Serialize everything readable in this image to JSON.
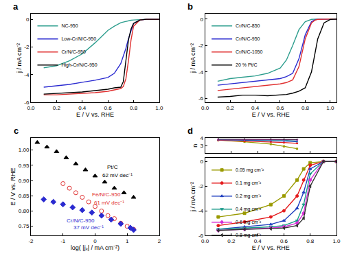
{
  "chart_data": [
    {
      "type": "line",
      "title": "a",
      "xlabel": "E / V vs. RHE",
      "ylabel": "j / mA cm⁻²",
      "x": [
        0.1,
        0.2,
        0.3,
        0.4,
        0.5,
        0.6,
        0.65,
        0.7,
        0.72,
        0.74,
        0.76,
        0.78,
        0.8,
        0.85,
        0.9,
        1.0
      ],
      "series": [
        {
          "name": "NC-950",
          "color": "#2e9e8e",
          "values": [
            -3.5,
            -3.35,
            -3.0,
            -2.5,
            -1.7,
            -0.8,
            -0.5,
            -0.25,
            -0.2,
            -0.15,
            -0.1,
            -0.07,
            -0.05,
            -0.02,
            0,
            0
          ]
        },
        {
          "name": "Low-Cr/N/C-950",
          "color": "#2a2ad0",
          "values": [
            -4.9,
            -4.8,
            -4.7,
            -4.55,
            -4.4,
            -4.2,
            -3.9,
            -3.2,
            -2.7,
            -2.1,
            -1.4,
            -0.8,
            -0.3,
            -0.05,
            0,
            0
          ]
        },
        {
          "name": "Cr/N/C-950",
          "color": "#e03030",
          "values": [
            -5.45,
            -5.45,
            -5.4,
            -5.35,
            -5.3,
            -5.2,
            -5.1,
            -5.0,
            -4.85,
            -4.3,
            -3.0,
            -1.5,
            -0.5,
            -0.05,
            0,
            0
          ]
        },
        {
          "name": "High-Cr/N/C-950",
          "color": "#000000",
          "values": [
            -5.4,
            -5.35,
            -5.3,
            -5.25,
            -5.15,
            -5.05,
            -4.95,
            -4.9,
            -4.5,
            -3.0,
            -1.5,
            -0.7,
            -0.3,
            -0.05,
            0,
            0
          ]
        }
      ],
      "xlim": [
        0,
        1
      ],
      "xticks": [
        {
          "value": 0,
          "label": "0.0"
        },
        0.2,
        0.4,
        0.6,
        0.8,
        {
          "value": 1,
          "label": "1.0"
        }
      ],
      "ylim": [
        -6,
        0.4
      ],
      "yticks": [
        -6,
        -4,
        -2,
        0
      ],
      "grid": false,
      "legend": "upper left"
    },
    {
      "type": "line",
      "title": "b",
      "xlabel": "E / V vs. RHE",
      "ylabel": "j / mA cm⁻²",
      "x": [
        0.1,
        0.2,
        0.3,
        0.4,
        0.5,
        0.6,
        0.65,
        0.7,
        0.75,
        0.8,
        0.85,
        0.88,
        0.9,
        0.95,
        1.0,
        1.05
      ],
      "series": [
        {
          "name": "Cr/N/C-850",
          "color": "#2e9e8e",
          "values": [
            -4.7,
            -4.5,
            -4.4,
            -4.3,
            -4.1,
            -3.7,
            -3.1,
            -2.0,
            -0.8,
            -0.2,
            -0.03,
            0,
            0,
            0,
            0,
            0
          ]
        },
        {
          "name": "Cr/N/C-950",
          "color": "#2a2ad0",
          "values": [
            -5.0,
            -4.9,
            -4.8,
            -4.7,
            -4.6,
            -4.5,
            -4.35,
            -4.1,
            -3.0,
            -1.2,
            -0.2,
            -0.05,
            -0.02,
            0,
            0,
            0
          ]
        },
        {
          "name": "Cr/N/C-1050",
          "color": "#e03030",
          "values": [
            -5.4,
            -5.3,
            -5.2,
            -5.1,
            -5.0,
            -4.9,
            -4.8,
            -4.6,
            -3.6,
            -1.5,
            -0.3,
            -0.08,
            -0.03,
            0,
            0,
            0
          ]
        },
        {
          "name": "20 % Pt/C",
          "color": "#000000",
          "values": [
            -5.9,
            -5.85,
            -5.75,
            -5.75,
            -5.8,
            -5.75,
            -5.7,
            -5.6,
            -5.45,
            -5.2,
            -4.0,
            -2.5,
            -1.5,
            -0.3,
            -0.03,
            0
          ]
        }
      ],
      "xlim": [
        0,
        1.05
      ],
      "xticks": [
        {
          "value": 0,
          "label": "0.0"
        },
        0.2,
        0.4,
        0.6,
        0.8,
        {
          "value": 1,
          "label": "1.0"
        }
      ],
      "ylim": [
        -6.3,
        0.4
      ],
      "yticks": [
        -6,
        -4,
        -2,
        0
      ],
      "grid": false,
      "legend": "upper left"
    },
    {
      "type": "scatter",
      "title": "c",
      "xlabel": "log( |jₖ| / mA cm⁻²)",
      "ylabel": "E / V vs. RHE",
      "series": [
        {
          "color": "#000000",
          "marker": "triangle-up",
          "x": [
            -1.8,
            -1.5,
            -1.2,
            -0.9,
            -0.6,
            -0.3,
            0,
            0.3,
            0.6,
            0.9,
            1.2
          ],
          "values": [
            1.025,
            1.01,
            0.995,
            0.975,
            0.955,
            0.935,
            0.915,
            0.895,
            0.875,
            0.86,
            0.845
          ]
        },
        {
          "color": "#e03030",
          "marker": "circle-open",
          "x": [
            -1.0,
            -0.8,
            -0.6,
            -0.4,
            -0.2,
            0,
            0.2,
            0.4,
            0.6,
            0.8,
            1.0,
            1.2
          ],
          "values": [
            0.89,
            0.875,
            0.86,
            0.845,
            0.83,
            0.815,
            0.8,
            0.785,
            0.775,
            0.76,
            0.75,
            0.74
          ]
        },
        {
          "color": "#2a2ad0",
          "marker": "diamond",
          "x": [
            -1.6,
            -1.3,
            -1.0,
            -0.7,
            -0.4,
            -0.1,
            0.2,
            0.5,
            0.8,
            1.1,
            1.2
          ],
          "values": [
            0.838,
            0.83,
            0.822,
            0.812,
            0.803,
            0.795,
            0.785,
            0.772,
            0.758,
            0.745,
            0.738
          ]
        }
      ],
      "annotations": [
        {
          "text": "Pt/C",
          "x": 0.55,
          "y": 0.945,
          "color": "#000000"
        },
        {
          "text": "62 mV dec⁻¹",
          "x": 0.7,
          "y": 0.918,
          "color": "#000000"
        },
        {
          "text": "Fe/N/C-950",
          "x": 0.35,
          "y": 0.855,
          "color": "#e03030"
        },
        {
          "text": "61 mV dec⁻¹",
          "x": 0.45,
          "y": 0.828,
          "color": "#e03030"
        },
        {
          "text": "Cr/N/C-950",
          "x": -0.45,
          "y": 0.768,
          "color": "#2a2ad0"
        },
        {
          "text": "37 mV dec⁻¹",
          "x": -0.2,
          "y": 0.745,
          "color": "#2a2ad0"
        }
      ],
      "xlim": [
        -2,
        2
      ],
      "xticks": [
        -2,
        -1,
        0,
        1,
        2
      ],
      "ylim": [
        0.72,
        1.04
      ],
      "yticks": [
        0.75,
        {
          "value": 0.8,
          "label": "0.80"
        },
        0.85,
        {
          "value": 0.9,
          "label": "0.90"
        },
        0.95,
        {
          "value": 1,
          "label": "1.00"
        }
      ],
      "grid": false
    },
    {
      "type": "line",
      "title": "d",
      "xlabel": "E / V vs. RHE",
      "ylabel": "j / mA cm⁻²",
      "y2label": "n",
      "x": [
        0.1,
        0.3,
        0.5,
        0.6,
        0.7,
        0.75,
        0.8,
        0.9,
        1.0
      ],
      "n_x": [
        0.1,
        0.3,
        0.5,
        0.6,
        0.7
      ],
      "series": [
        {
          "name": "0.05 mg cm⁻²",
          "color": "#9a9a00",
          "marker": "square",
          "values": [
            -4.5,
            -4.2,
            -3.5,
            -2.8,
            -1.5,
            -0.6,
            -0.1,
            0,
            0
          ],
          "n_values": [
            3.7,
            3.5,
            3.2,
            2.9,
            2.6
          ]
        },
        {
          "name": "0.1 mg cm⁻²",
          "color": "#e41a1c",
          "marker": "circle",
          "values": [
            -5.2,
            -4.9,
            -4.5,
            -4.0,
            -2.8,
            -1.5,
            -0.3,
            0,
            0
          ],
          "n_values": [
            3.7,
            3.6,
            3.5,
            3.4,
            3.3
          ]
        },
        {
          "name": "0.2 mg cm⁻²",
          "color": "#1f3fbf",
          "marker": "triangle-up",
          "values": [
            -5.5,
            -5.3,
            -5.1,
            -4.8,
            -3.8,
            -2.5,
            -0.6,
            0,
            0
          ],
          "n_values": [
            3.75,
            3.7,
            3.65,
            3.6,
            3.5
          ]
        },
        {
          "name": "0.4 mg cm⁻²",
          "color": "#1a9a8a",
          "marker": "triangle-down",
          "values": [
            -5.5,
            -5.4,
            -5.3,
            -5.2,
            -4.8,
            -3.5,
            -1.0,
            0,
            0
          ],
          "n_values": [
            3.8,
            3.78,
            3.75,
            3.7,
            3.6
          ]
        },
        {
          "name": "0.6 mg cm⁻²",
          "color": "#d62fd6",
          "marker": "diamond",
          "values": [
            -5.6,
            -5.5,
            -5.4,
            -5.3,
            -5.0,
            -4.2,
            -1.5,
            0,
            0
          ],
          "n_values": [
            3.82,
            3.8,
            3.8,
            3.78,
            3.75
          ]
        },
        {
          "name": "0.8 mg cm⁻²",
          "color": "#333333",
          "marker": "triangle-left",
          "values": [
            -5.6,
            -5.5,
            -5.45,
            -5.4,
            -5.2,
            -4.6,
            -2.0,
            0,
            0
          ],
          "n_values": [
            3.85,
            3.85,
            3.85,
            3.83,
            3.8
          ]
        }
      ],
      "xlim": [
        0,
        1
      ],
      "xticks": [
        {
          "value": 0,
          "label": "0.0"
        },
        0.2,
        0.4,
        0.6,
        0.8,
        {
          "value": 1,
          "label": "1.0"
        }
      ],
      "ylim": [
        -6,
        0.3
      ],
      "yticks": [
        -6,
        -4,
        -2,
        0
      ],
      "y2lim": [
        2,
        4
      ],
      "y2ticks": [
        3,
        4
      ],
      "grid": false,
      "legend": "upper left"
    }
  ]
}
